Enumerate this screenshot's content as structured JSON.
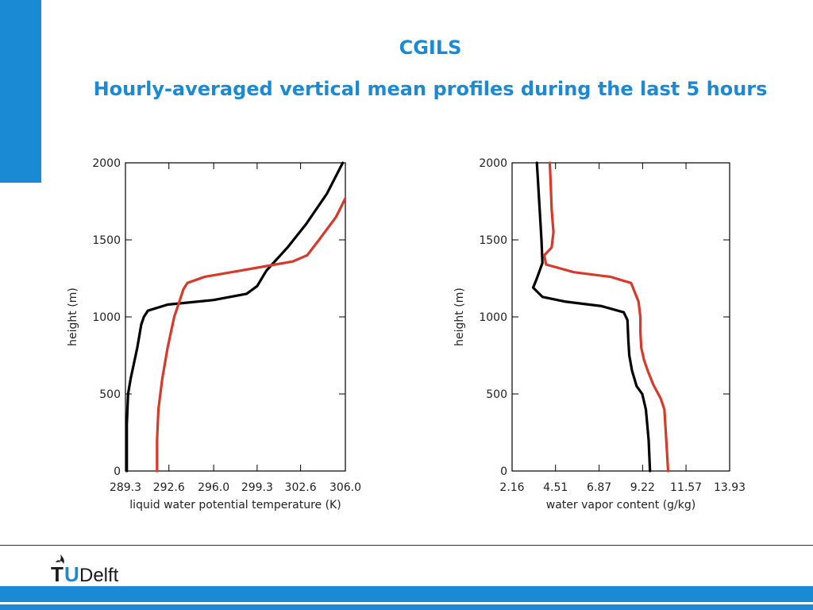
{
  "slide": {
    "title": "CGILS",
    "subtitle": "Hourly-averaged vertical mean profiles during the last 5 hours"
  },
  "logo": {
    "text_t": "T",
    "text_u": "U",
    "text_delft": "Delft"
  },
  "colors": {
    "accent": "#1a8ad4",
    "series_black": "#000000",
    "series_red": "#d63a2a"
  },
  "chart_data": [
    {
      "type": "line",
      "xlabel": "liquid water potential temperature (K)",
      "ylabel": "height (m)",
      "xlim": [
        289.3,
        306.0
      ],
      "ylim": [
        0,
        2000
      ],
      "xticks": [
        "289.3",
        "292.6",
        "296.0",
        "299.3",
        "302.6",
        "306.0"
      ],
      "yticks": [
        "0",
        "500",
        "1000",
        "1500",
        "2000"
      ],
      "series": [
        {
          "color": "#000000",
          "x": [
            289.4,
            289.4,
            289.5,
            289.7,
            290.2,
            290.5,
            290.7,
            291.0,
            292.5,
            296.0,
            298.5,
            299.3,
            300.0,
            301.6,
            303.0,
            304.6,
            305.8
          ],
          "y": [
            0,
            300,
            500,
            600,
            800,
            950,
            1000,
            1040,
            1080,
            1110,
            1150,
            1200,
            1300,
            1450,
            1600,
            1800,
            2000
          ]
        },
        {
          "color": "#d63a2a",
          "x": [
            291.7,
            291.7,
            291.8,
            292.1,
            292.5,
            293.0,
            293.4,
            293.7,
            294.0,
            295.3,
            298.0,
            300.0,
            302.0,
            303.1,
            304.0,
            305.3,
            306.0
          ],
          "y": [
            0,
            200,
            400,
            600,
            800,
            1000,
            1100,
            1180,
            1220,
            1260,
            1300,
            1330,
            1360,
            1400,
            1500,
            1650,
            1770
          ]
        }
      ]
    },
    {
      "type": "line",
      "xlabel": "water vapor content (g/kg)",
      "ylabel": "height (m)",
      "xlim": [
        2.16,
        13.93
      ],
      "ylim": [
        0,
        2000
      ],
      "xticks": [
        "2.16",
        "4.51",
        "6.87",
        "9.22",
        "11.57",
        "13.93"
      ],
      "yticks": [
        "0",
        "500",
        "1000",
        "1500",
        "2000"
      ],
      "series": [
        {
          "color": "#000000",
          "x": [
            9.62,
            9.55,
            9.4,
            9.2,
            8.9,
            8.65,
            8.5,
            8.45,
            8.4,
            8.2,
            7.0,
            5.0,
            3.8,
            3.3,
            3.5,
            3.8,
            3.75,
            3.65,
            3.55,
            3.5
          ],
          "y": [
            0,
            200,
            400,
            500,
            550,
            650,
            750,
            850,
            980,
            1030,
            1070,
            1100,
            1130,
            1190,
            1250,
            1350,
            1500,
            1700,
            1900,
            2000
          ]
        },
        {
          "color": "#d63a2a",
          "x": [
            10.6,
            10.5,
            10.4,
            10.2,
            9.8,
            9.5,
            9.3,
            9.15,
            9.1,
            9.1,
            9.0,
            8.6,
            7.5,
            5.5,
            4.0,
            3.9,
            4.3,
            4.4,
            4.3,
            4.25,
            4.2
          ],
          "y": [
            0,
            200,
            400,
            470,
            560,
            650,
            720,
            800,
            900,
            1000,
            1100,
            1220,
            1260,
            1290,
            1340,
            1400,
            1450,
            1550,
            1700,
            1850,
            2000
          ]
        }
      ]
    }
  ]
}
